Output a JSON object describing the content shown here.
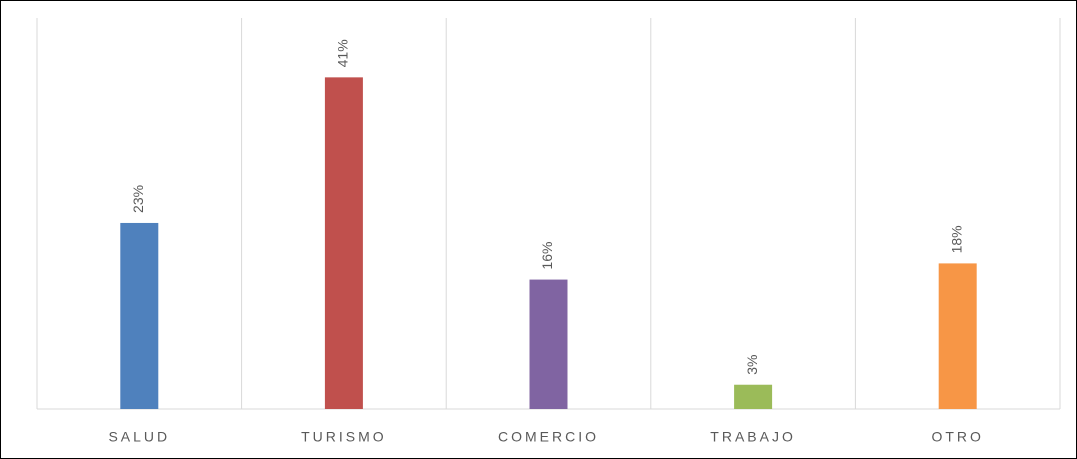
{
  "chart_data": {
    "type": "bar",
    "categories": [
      "SALUD",
      "TURISMO",
      "COMERCIO",
      "TRABAJO",
      "OTRO"
    ],
    "values": [
      23,
      41,
      16,
      3,
      18
    ],
    "value_labels": [
      "23%",
      "41%",
      "16%",
      "3%",
      "18%"
    ],
    "colors": [
      "#4f81bd",
      "#c0504d",
      "#8064a2",
      "#9bbb59",
      "#f79646"
    ],
    "ylim": [
      0,
      45
    ]
  }
}
